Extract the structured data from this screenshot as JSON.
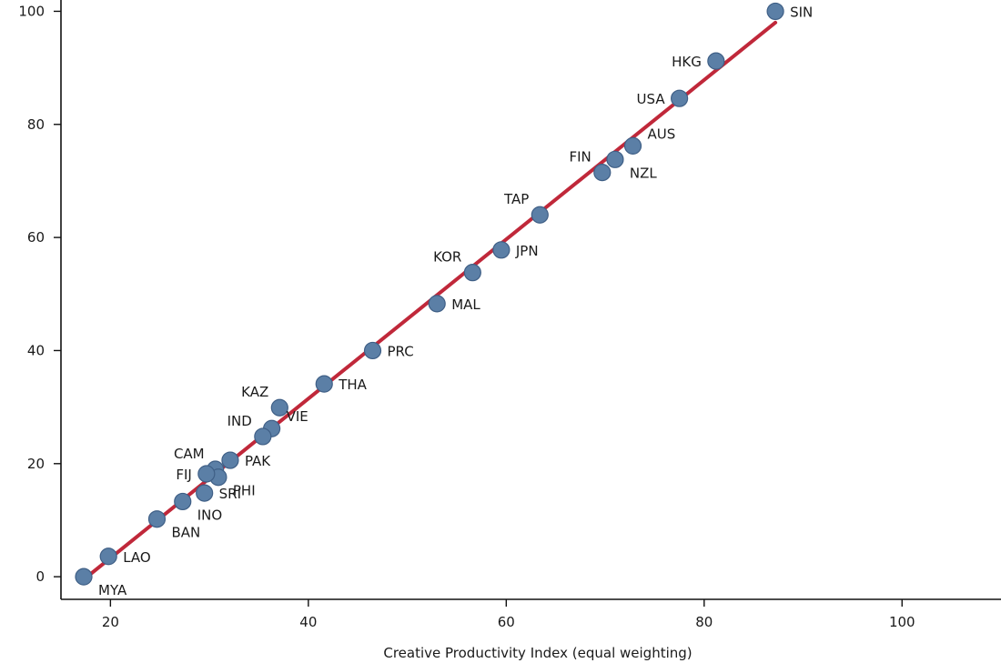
{
  "chart_data": {
    "type": "scatter",
    "title": "",
    "xlabel": "Creative Productivity Index (equal weighting)",
    "ylabel": "",
    "xlim": [
      15,
      110
    ],
    "ylim": [
      -4,
      102
    ],
    "xticks": [
      20,
      40,
      60,
      80,
      100
    ],
    "yticks": [
      0,
      20,
      40,
      60,
      80,
      100
    ],
    "grid": false,
    "colors": {
      "point": "#5b7fa6",
      "point_edge": "#3f5f86",
      "fit_line": "#c0283a"
    },
    "fit_line": {
      "x": [
        17.3,
        87.2
      ],
      "y": [
        -0.5,
        98.0
      ]
    },
    "points": [
      {
        "label": "SIN",
        "x": 87.2,
        "y": 100.0,
        "label_pos": "right"
      },
      {
        "label": "HKG",
        "x": 81.2,
        "y": 91.2,
        "label_pos": "left"
      },
      {
        "label": "USA",
        "x": 77.5,
        "y": 84.6,
        "label_pos": "left"
      },
      {
        "label": "AUS",
        "x": 72.8,
        "y": 76.2,
        "label_pos": "upper-right"
      },
      {
        "label": "NZL",
        "x": 71.0,
        "y": 73.8,
        "label_pos": "lower-right"
      },
      {
        "label": "FIN",
        "x": 69.7,
        "y": 71.5,
        "label_pos": "upper-left"
      },
      {
        "label": "TAP",
        "x": 63.4,
        "y": 64.0,
        "label_pos": "upper-left"
      },
      {
        "label": "JPN",
        "x": 59.5,
        "y": 57.8,
        "label_pos": "right"
      },
      {
        "label": "KOR",
        "x": 56.6,
        "y": 53.8,
        "label_pos": "upper-left"
      },
      {
        "label": "MAL",
        "x": 53.0,
        "y": 48.3,
        "label_pos": "right"
      },
      {
        "label": "PRC",
        "x": 46.5,
        "y": 40.0,
        "label_pos": "right"
      },
      {
        "label": "THA",
        "x": 41.6,
        "y": 34.1,
        "label_pos": "right"
      },
      {
        "label": "KAZ",
        "x": 37.1,
        "y": 29.9,
        "label_pos": "upper-left"
      },
      {
        "label": "VIE",
        "x": 36.3,
        "y": 26.2,
        "label_pos": "upper-right"
      },
      {
        "label": "IND",
        "x": 35.4,
        "y": 24.8,
        "label_pos": "upper-left"
      },
      {
        "label": "PAK",
        "x": 32.1,
        "y": 20.6,
        "label_pos": "right"
      },
      {
        "label": "CAM",
        "x": 30.6,
        "y": 19.0,
        "label_pos": "upper-left"
      },
      {
        "label": "PHI",
        "x": 30.9,
        "y": 17.6,
        "label_pos": "lower-right"
      },
      {
        "label": "FIJ",
        "x": 29.7,
        "y": 18.2,
        "label_pos": "left"
      },
      {
        "label": "SRI",
        "x": 29.5,
        "y": 14.8,
        "label_pos": "right"
      },
      {
        "label": "INO",
        "x": 27.3,
        "y": 13.3,
        "label_pos": "lower-right"
      },
      {
        "label": "BAN",
        "x": 24.7,
        "y": 10.2,
        "label_pos": "lower-right"
      },
      {
        "label": "LAO",
        "x": 19.8,
        "y": 3.6,
        "label_pos": "right"
      },
      {
        "label": "MYA",
        "x": 17.3,
        "y": 0.0,
        "label_pos": "lower-right"
      }
    ]
  }
}
